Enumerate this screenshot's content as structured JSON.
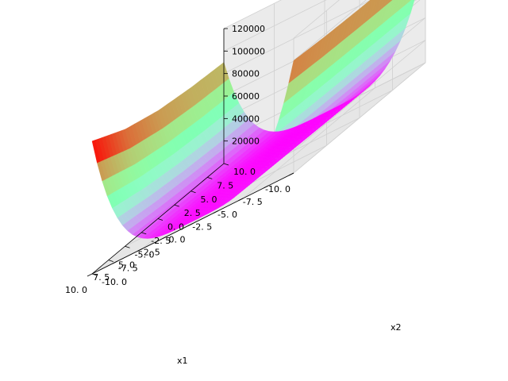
{
  "chart_data": {
    "type": "surface3d",
    "title": "",
    "xlabel": "x1",
    "ylabel": "x2",
    "zlabel": "",
    "xlim": [
      -10,
      10
    ],
    "ylim": [
      -10,
      10
    ],
    "zlim": [
      0,
      120000
    ],
    "x_ticks": [
      "-10. 0",
      "-7. 5",
      "-5. 0",
      "-2. 5",
      "0. 0",
      "2. 5",
      "5. 0",
      "7. 5",
      "10. 0"
    ],
    "y_ticks": [
      "-10. 0",
      "-7. 5",
      "-5. 0",
      "-2. 5",
      "0. 0",
      "2. 5",
      "5. 0",
      "7. 5",
      "10. 0"
    ],
    "z_ticks": [
      "20000",
      "40000",
      "60000",
      "80000",
      "100000",
      "120000"
    ],
    "colormap": "rainbow",
    "grid": true,
    "surface_values": {
      "x1": [
        -10,
        -5,
        0,
        5,
        10
      ],
      "x2": [
        -10,
        -5,
        0,
        5,
        10
      ],
      "z_at_x1_-10": [
        100000,
        98000,
        97000,
        96500,
        96000
      ],
      "z_at_x1_0": [
        2000,
        1500,
        1000,
        500,
        200
      ],
      "z_at_x1_10": [
        118000,
        104000,
        96000,
        92000,
        90000
      ]
    }
  }
}
